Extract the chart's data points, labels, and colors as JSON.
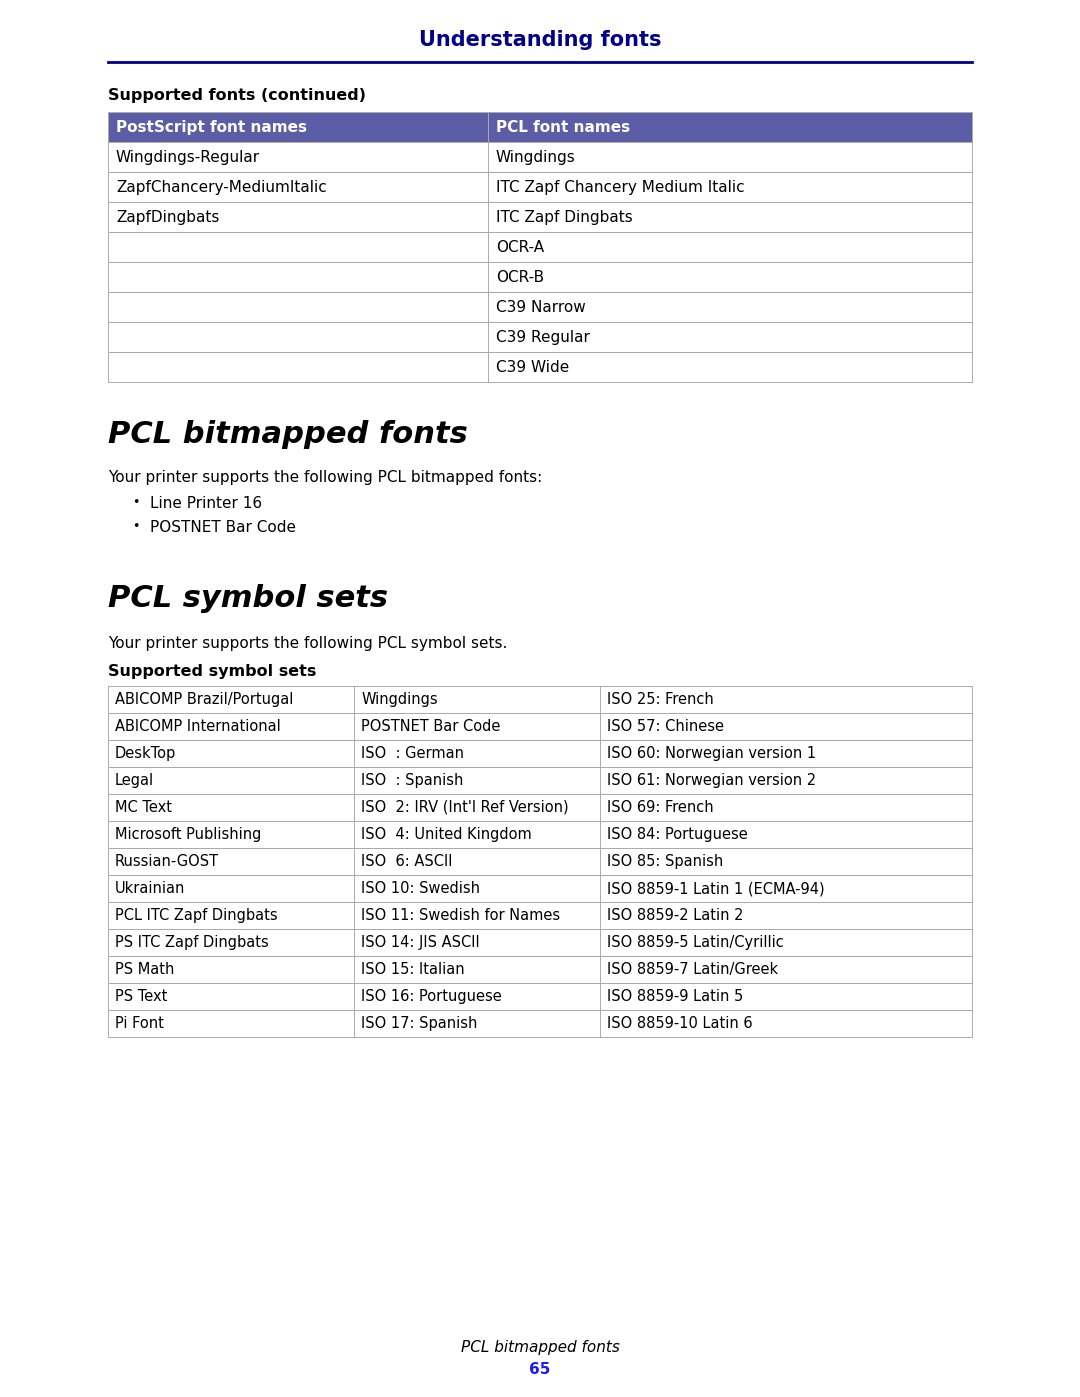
{
  "page_bg": "#ffffff",
  "header_title": "Understanding fonts",
  "header_title_color": "#00008B",
  "header_line_color": "#00008B",
  "section1_label": "Supported fonts (continued)",
  "table1_header": [
    "PostScript font names",
    "PCL font names"
  ],
  "table1_header_bg": "#5b5ea6",
  "table1_header_color": "#ffffff",
  "table1_rows": [
    [
      "Wingdings-Regular",
      "Wingdings"
    ],
    [
      "ZapfChancery-MediumItalic",
      "ITC Zapf Chancery Medium Italic"
    ],
    [
      "ZapfDingbats",
      "ITC Zapf Dingbats"
    ],
    [
      "",
      "OCR-A"
    ],
    [
      "",
      "OCR-B"
    ],
    [
      "",
      "C39 Narrow"
    ],
    [
      "",
      "C39 Regular"
    ],
    [
      "",
      "C39 Wide"
    ]
  ],
  "table1_row_bg": "#ffffff",
  "table1_border_color": "#aaaaaa",
  "section2_title": "PCL bitmapped fonts",
  "section2_body": "Your printer supports the following PCL bitmapped fonts:",
  "section2_bullets": [
    "Line Printer 16",
    "POSTNET Bar Code"
  ],
  "section3_title": "PCL symbol sets",
  "section3_body": "Your printer supports the following PCL symbol sets.",
  "section3_label": "Supported symbol sets",
  "table2_rows": [
    [
      "ABICOMP Brazil/Portugal",
      "Wingdings",
      "ISO 25: French"
    ],
    [
      "ABICOMP International",
      "POSTNET Bar Code",
      "ISO 57: Chinese"
    ],
    [
      "DeskTop",
      "ISO  : German",
      "ISO 60: Norwegian version 1"
    ],
    [
      "Legal",
      "ISO  : Spanish",
      "ISO 61: Norwegian version 2"
    ],
    [
      "MC Text",
      "ISO  2: IRV (Int'l Ref Version)",
      "ISO 69: French"
    ],
    [
      "Microsoft Publishing",
      "ISO  4: United Kingdom",
      "ISO 84: Portuguese"
    ],
    [
      "Russian-GOST",
      "ISO  6: ASCII",
      "ISO 85: Spanish"
    ],
    [
      "Ukrainian",
      "ISO 10: Swedish",
      "ISO 8859-1 Latin 1 (ECMA-94)"
    ],
    [
      "PCL ITC Zapf Dingbats",
      "ISO 11: Swedish for Names",
      "ISO 8859-2 Latin 2"
    ],
    [
      "PS ITC Zapf Dingbats",
      "ISO 14: JIS ASCII",
      "ISO 8859-5 Latin/Cyrillic"
    ],
    [
      "PS Math",
      "ISO 15: Italian",
      "ISO 8859-7 Latin/Greek"
    ],
    [
      "PS Text",
      "ISO 16: Portuguese",
      "ISO 8859-9 Latin 5"
    ],
    [
      "Pi Font",
      "ISO 17: Spanish",
      "ISO 8859-10 Latin 6"
    ]
  ],
  "table2_border_color": "#aaaaaa",
  "table2_row_bg": "#ffffff",
  "footer_text1": "PCL bitmapped fonts",
  "footer_text2": "65",
  "footer_italic_color": "#000000",
  "footer_number_color": "#1a1aff"
}
